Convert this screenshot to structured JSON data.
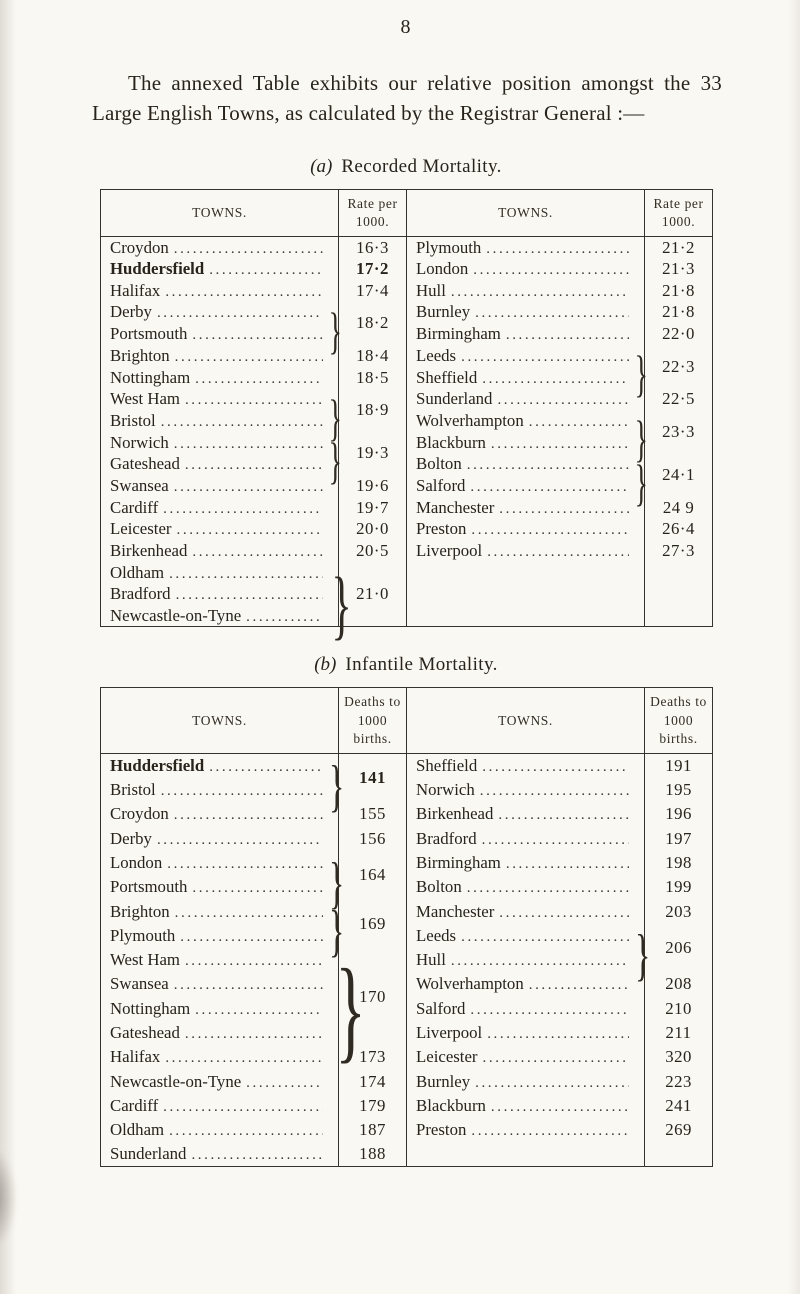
{
  "page": {
    "number": "8"
  },
  "intro_paragraph": "The annexed Table exhibits our relative position amongst the 33 Large English Towns, as calculated by the Registrar General :—",
  "tables": [
    {
      "id": "a",
      "caption_prefix": "(a)",
      "caption_title": "Recorded Mortality.",
      "towns_header": "TOWNS.",
      "rate_header": "Rate per 1000.",
      "left": [
        {
          "towns": [
            {
              "name": "Croydon"
            }
          ],
          "rate": "16·3"
        },
        {
          "towns": [
            {
              "name": "Huddersfield",
              "bold": true
            }
          ],
          "rate": "17·2",
          "rate_bold": true
        },
        {
          "towns": [
            {
              "name": "Halifax"
            }
          ],
          "rate": "17·4"
        },
        {
          "towns": [
            {
              "name": "Derby"
            },
            {
              "name": "Portsmouth"
            }
          ],
          "rate": "18·2"
        },
        {
          "towns": [
            {
              "name": "Brighton"
            }
          ],
          "rate": "18·4"
        },
        {
          "towns": [
            {
              "name": "Nottingham"
            }
          ],
          "rate": "18·5"
        },
        {
          "towns": [
            {
              "name": "West Ham"
            },
            {
              "name": "Bristol"
            }
          ],
          "rate": "18·9"
        },
        {
          "towns": [
            {
              "name": "Norwich"
            },
            {
              "name": "Gateshead"
            }
          ],
          "rate": "19·3"
        },
        {
          "towns": [
            {
              "name": "Swansea"
            }
          ],
          "rate": "19·6"
        },
        {
          "towns": [
            {
              "name": "Cardiff"
            }
          ],
          "rate": "19·7"
        },
        {
          "towns": [
            {
              "name": "Leicester"
            }
          ],
          "rate": "20·0"
        },
        {
          "towns": [
            {
              "name": "Birkenhead"
            }
          ],
          "rate": "20·5"
        },
        {
          "towns": [
            {
              "name": "Oldham"
            },
            {
              "name": "Bradford"
            },
            {
              "name": "Newcastle-on-Tyne"
            }
          ],
          "rate": "21·0"
        }
      ],
      "right": [
        {
          "towns": [
            {
              "name": "Plymouth"
            }
          ],
          "rate": "21·2"
        },
        {
          "towns": [
            {
              "name": "London"
            }
          ],
          "rate": "21·3"
        },
        {
          "towns": [
            {
              "name": "Hull"
            }
          ],
          "rate": "21·8"
        },
        {
          "towns": [
            {
              "name": "Burnley"
            }
          ],
          "rate": "21·8"
        },
        {
          "towns": [
            {
              "name": "Birmingham"
            }
          ],
          "rate": "22·0"
        },
        {
          "towns": [
            {
              "name": "Leeds"
            },
            {
              "name": "Sheffield"
            }
          ],
          "rate": "22·3"
        },
        {
          "towns": [
            {
              "name": "Sunderland"
            }
          ],
          "rate": "22·5"
        },
        {
          "towns": [
            {
              "name": "Wolverhampton"
            },
            {
              "name": "Blackburn"
            }
          ],
          "rate": "23·3"
        },
        {
          "towns": [
            {
              "name": "Bolton"
            },
            {
              "name": "Salford"
            }
          ],
          "rate": "24·1"
        },
        {
          "towns": [
            {
              "name": "Manchester"
            }
          ],
          "rate": "24 9"
        },
        {
          "towns": [
            {
              "name": "Preston"
            }
          ],
          "rate": "26·4"
        },
        {
          "towns": [
            {
              "name": "Liverpool"
            }
          ],
          "rate": "27·3"
        }
      ]
    },
    {
      "id": "b",
      "caption_prefix": "(b)",
      "caption_title": "Infantile Mortality.",
      "towns_header": "TOWNS.",
      "rate_header": "Deaths to 1000 births.",
      "left": [
        {
          "towns": [
            {
              "name": "Huddersfield",
              "bold": true
            },
            {
              "name": "Bristol"
            }
          ],
          "rate": "141",
          "rate_bold": true
        },
        {
          "towns": [
            {
              "name": "Croydon"
            }
          ],
          "rate": "155"
        },
        {
          "towns": [
            {
              "name": "Derby"
            }
          ],
          "rate": "156"
        },
        {
          "towns": [
            {
              "name": "London"
            },
            {
              "name": "Portsmouth"
            }
          ],
          "rate": "164"
        },
        {
          "towns": [
            {
              "name": "Brighton"
            },
            {
              "name": "Plymouth"
            }
          ],
          "rate": "169"
        },
        {
          "towns": [
            {
              "name": "West Ham"
            },
            {
              "name": "Swansea"
            },
            {
              "name": "Nottingham"
            },
            {
              "name": "Gateshead"
            }
          ],
          "rate": "170"
        },
        {
          "towns": [
            {
              "name": "Halifax"
            }
          ],
          "rate": "173"
        },
        {
          "towns": [
            {
              "name": "Newcastle-on-Tyne"
            }
          ],
          "rate": "174"
        },
        {
          "towns": [
            {
              "name": "Cardiff"
            }
          ],
          "rate": "179"
        },
        {
          "towns": [
            {
              "name": "Oldham"
            }
          ],
          "rate": "187"
        },
        {
          "towns": [
            {
              "name": "Sunderland"
            }
          ],
          "rate": "188"
        }
      ],
      "right": [
        {
          "towns": [
            {
              "name": "Sheffield"
            }
          ],
          "rate": "191"
        },
        {
          "towns": [
            {
              "name": "Norwich"
            }
          ],
          "rate": "195"
        },
        {
          "towns": [
            {
              "name": "Birkenhead"
            }
          ],
          "rate": "196"
        },
        {
          "towns": [
            {
              "name": "Bradford"
            }
          ],
          "rate": "197"
        },
        {
          "towns": [
            {
              "name": "Birmingham"
            }
          ],
          "rate": "198"
        },
        {
          "towns": [
            {
              "name": "Bolton"
            }
          ],
          "rate": "199"
        },
        {
          "towns": [
            {
              "name": "Manchester"
            }
          ],
          "rate": "203"
        },
        {
          "towns": [
            {
              "name": "Leeds"
            },
            {
              "name": "Hull"
            }
          ],
          "rate": "206"
        },
        {
          "towns": [
            {
              "name": "Wolverhampton"
            }
          ],
          "rate": "208"
        },
        {
          "towns": [
            {
              "name": "Salford"
            }
          ],
          "rate": "210"
        },
        {
          "towns": [
            {
              "name": "Liverpool"
            }
          ],
          "rate": "211"
        },
        {
          "towns": [
            {
              "name": "Leicester"
            }
          ],
          "rate": "320"
        },
        {
          "towns": [
            {
              "name": "Burnley"
            }
          ],
          "rate": "223"
        },
        {
          "towns": [
            {
              "name": "Blackburn"
            }
          ],
          "rate": "241"
        },
        {
          "towns": [
            {
              "name": "Preston"
            }
          ],
          "rate": "269"
        }
      ]
    }
  ]
}
